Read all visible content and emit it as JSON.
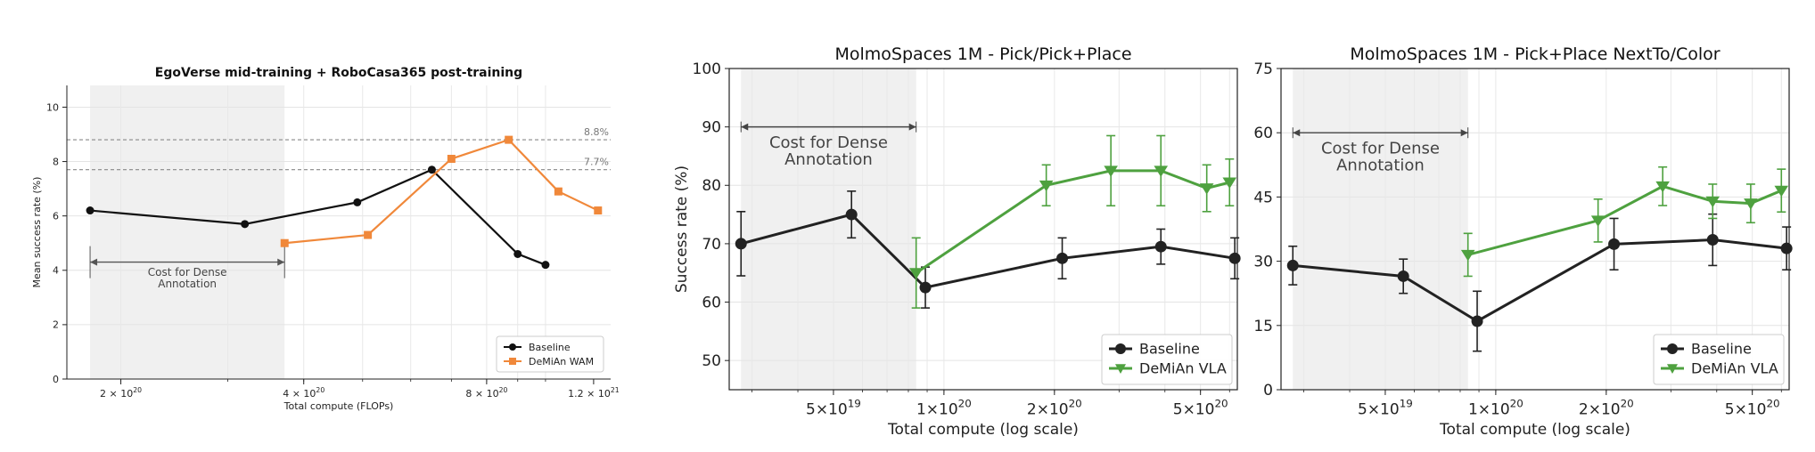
{
  "chart_data": [
    {
      "type": "line",
      "title": "EgoVerse mid-training + RoboCasa365 post-training",
      "xlabel": "Total compute (FLOPs)",
      "ylabel": "Mean success rate (%)",
      "xscale": "log",
      "xlim": [
        1.63e+20,
        1.28e+21
      ],
      "ylim": [
        0,
        10.8
      ],
      "xticks": [
        2e+20,
        4e+20,
        8e+20,
        1.2e+21
      ],
      "xtick_labels": [
        {
          "base": "2 × 10",
          "exp": "20"
        },
        {
          "base": "4 × 10",
          "exp": "20"
        },
        {
          "base": "8 × 10",
          "exp": "20"
        },
        {
          "base": "1.2 × 10",
          "exp": "21"
        }
      ],
      "yticks": [
        0,
        2,
        4,
        6,
        8,
        10
      ],
      "grid": true,
      "legend_position": "lower-right",
      "reference_lines": [
        {
          "y": 8.8,
          "label": "8.8%"
        },
        {
          "y": 7.7,
          "label": "7.7%"
        }
      ],
      "shaded_region": {
        "x": [
          1.78e+20,
          3.72e+20
        ]
      },
      "annotation": {
        "text": [
          "Cost for Dense",
          "Annotation"
        ],
        "y": 4.3
      },
      "series": [
        {
          "name": "Baseline",
          "color": "#111111",
          "marker": "circle",
          "x": [
            1.78e+20,
            3.2e+20,
            4.9e+20,
            6.5e+20,
            9e+20,
            1e+21
          ],
          "y": [
            6.2,
            5.7,
            6.5,
            7.7,
            4.6,
            4.2
          ]
        },
        {
          "name": "DeMiAn WAM",
          "color": "#f0883a",
          "marker": "square",
          "x": [
            3.72e+20,
            5.1e+20,
            7e+20,
            8.7e+20,
            1.05e+21,
            1.22e+21
          ],
          "y": [
            5.0,
            5.3,
            8.1,
            8.8,
            6.9,
            6.2
          ]
        }
      ]
    },
    {
      "type": "line",
      "title": "MolmoSpaces 1M - Pick/Pick+Place",
      "xlabel": "Total compute (log scale)",
      "ylabel": "Success rate (%)",
      "xscale": "log",
      "xlim": [
        2.6e+19,
        6.3e+20
      ],
      "ylim": [
        45,
        100
      ],
      "xticks": [
        5e+19,
        1e+20,
        2e+20,
        5e+20
      ],
      "xtick_labels": [
        {
          "base": "5×10",
          "exp": "19"
        },
        {
          "base": "1×10",
          "exp": "20"
        },
        {
          "base": "2×10",
          "exp": "20"
        },
        {
          "base": "5×10",
          "exp": "20"
        }
      ],
      "yticks": [
        50,
        60,
        70,
        80,
        90,
        100
      ],
      "grid": true,
      "legend_position": "lower-right",
      "shaded_region": {
        "x": [
          2.8e+19,
          8.4e+19
        ]
      },
      "annotation": {
        "text": [
          "Cost for Dense",
          "Annotation"
        ],
        "y": 90
      },
      "series": [
        {
          "name": "Baseline",
          "color": "#222222",
          "marker": "circle",
          "x": [
            2.8e+19,
            5.6e+19,
            8.9e+19,
            2.1e+20,
            3.9e+20,
            6.2e+20
          ],
          "y": [
            70,
            75,
            62.5,
            67.5,
            69.5,
            67.5
          ],
          "err": [
            5.5,
            4.0,
            3.5,
            3.5,
            3.0,
            3.5
          ]
        },
        {
          "name": "DeMiAn VLA",
          "color": "#4ea13f",
          "marker": "triangle-down",
          "x": [
            8.4e+19,
            1.9e+20,
            2.85e+20,
            3.9e+20,
            5.2e+20,
            6e+20
          ],
          "y": [
            65,
            80,
            82.5,
            82.5,
            79.5,
            80.5
          ],
          "err": [
            6.0,
            3.5,
            6.0,
            6.0,
            4.0,
            4.0
          ]
        }
      ]
    },
    {
      "type": "line",
      "title": "MolmoSpaces 1M - Pick+Place NextTo/Color",
      "xlabel": "Total compute (log scale)",
      "ylabel": "",
      "xscale": "log",
      "xlim": [
        2.6e+19,
        6.3e+20
      ],
      "ylim": [
        0,
        75
      ],
      "xticks": [
        5e+19,
        1e+20,
        2e+20,
        5e+20
      ],
      "xtick_labels": [
        {
          "base": "5×10",
          "exp": "19"
        },
        {
          "base": "1×10",
          "exp": "20"
        },
        {
          "base": "2×10",
          "exp": "20"
        },
        {
          "base": "5×10",
          "exp": "20"
        }
      ],
      "yticks": [
        0,
        15,
        30,
        45,
        60,
        75
      ],
      "grid": true,
      "legend_position": "lower-right",
      "shaded_region": {
        "x": [
          2.8e+19,
          8.4e+19
        ]
      },
      "annotation": {
        "text": [
          "Cost for Dense",
          "Annotation"
        ],
        "y": 60
      },
      "series": [
        {
          "name": "Baseline",
          "color": "#222222",
          "marker": "circle",
          "x": [
            2.8e+19,
            5.6e+19,
            8.9e+19,
            2.1e+20,
            3.9e+20,
            6.2e+20
          ],
          "y": [
            29,
            26.5,
            16,
            34,
            35,
            33
          ],
          "err": [
            4.5,
            4.0,
            7.0,
            6.0,
            6.0,
            5.0
          ]
        },
        {
          "name": "DeMiAn VLA",
          "color": "#4ea13f",
          "marker": "triangle-down",
          "x": [
            8.4e+19,
            1.9e+20,
            2.85e+20,
            3.9e+20,
            4.95e+20,
            6e+20
          ],
          "y": [
            31.5,
            39.5,
            47.5,
            44,
            43.5,
            46.5
          ],
          "err": [
            5.0,
            5.0,
            4.5,
            4.0,
            4.5,
            5.0
          ]
        }
      ]
    }
  ]
}
